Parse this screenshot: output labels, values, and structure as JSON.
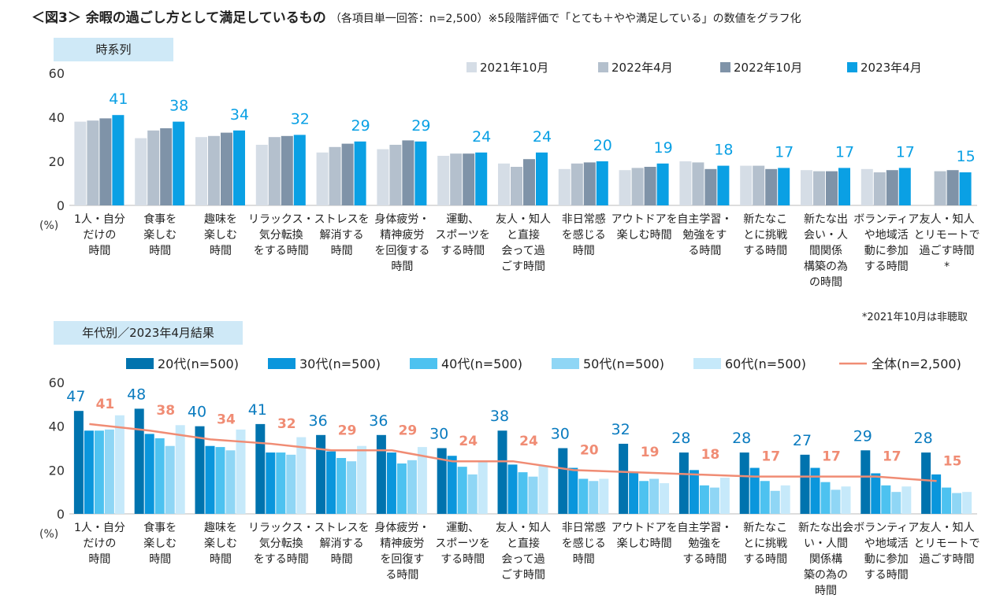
{
  "header": {
    "title": "＜図3＞ 余暇の過ごし方として満足しているもの",
    "note": "（各項目単一回答：n=2,500）※5段階評価で「とても＋やや満足している」の数値をグラフ化"
  },
  "footnote": "*2021年10月は非聴取",
  "chart_data": [
    {
      "type": "bar",
      "section_label": "時系列",
      "ylabel": "(%)",
      "ylim": [
        0,
        60
      ],
      "yticks": [
        0,
        20,
        40,
        60
      ],
      "legend_position": "top-right",
      "categories": [
        [
          "1人・自分",
          "だけの",
          "時間"
        ],
        [
          "食事を",
          "楽しむ",
          "時間"
        ],
        [
          "趣味を",
          "楽しむ",
          "時間"
        ],
        [
          "リラックス・",
          "気分転換",
          "をする時間"
        ],
        [
          "ストレスを",
          "解消する",
          "時間"
        ],
        [
          "身体疲労・",
          "精神疲労",
          "を回復する",
          "時間"
        ],
        [
          "運動、",
          "スポーツを",
          "する時間"
        ],
        [
          "友人・知人",
          "と直接",
          "会って過",
          "ごす時間"
        ],
        [
          "非日常感",
          "を感じる",
          "時間"
        ],
        [
          "アウトドアを",
          "楽しむ時間"
        ],
        [
          "自主学習・",
          "勉強をす",
          "る時間"
        ],
        [
          "新たなこ",
          "とに挑戦",
          "する時間"
        ],
        [
          "新たな出",
          "会い・人",
          "間関係",
          "構築の為",
          "の時間"
        ],
        [
          "ボランティア",
          "や地域活",
          "動に参加",
          "する時間"
        ],
        [
          "友人・知人",
          "とリモートで",
          "過ごす時間",
          "*"
        ]
      ],
      "series": [
        {
          "name": "2021年10月",
          "color": "#d5dde6",
          "values": [
            38,
            30.5,
            31,
            27.5,
            24,
            25.5,
            22.5,
            19,
            16.5,
            16,
            20,
            18,
            16,
            16.5,
            null
          ]
        },
        {
          "name": "2022年4月",
          "color": "#b4c0cd",
          "values": [
            38.5,
            34,
            31.5,
            31,
            26.5,
            27.5,
            23.5,
            17.5,
            19,
            17,
            19.5,
            18,
            15.5,
            15,
            15.5
          ]
        },
        {
          "name": "2022年10月",
          "color": "#7f93a8",
          "values": [
            39.5,
            35,
            33,
            31.5,
            28,
            29.5,
            23.5,
            21,
            19.5,
            17.5,
            16.5,
            16.5,
            15.5,
            16,
            16
          ]
        },
        {
          "name": "2023年4月",
          "color": "#0aa0e4",
          "values": [
            41,
            38,
            34,
            32,
            29,
            29,
            24,
            24,
            20,
            19,
            18,
            17,
            17,
            17,
            15
          ]
        }
      ],
      "data_labels": {
        "series": "2023年4月",
        "values": [
          41,
          38,
          34,
          32,
          29,
          29,
          24,
          24,
          20,
          19,
          18,
          17,
          17,
          17,
          15
        ],
        "color": "#0aa0e4"
      }
    },
    {
      "type": "bar",
      "section_label": "年代別／2023年4月結果",
      "ylabel": "(%)",
      "ylim": [
        0,
        60
      ],
      "yticks": [
        0,
        20,
        40,
        60
      ],
      "legend_position": "top",
      "categories": [
        [
          "1人・自分",
          "だけの",
          "時間"
        ],
        [
          "食事を",
          "楽しむ",
          "時間"
        ],
        [
          "趣味を",
          "楽しむ",
          "時間"
        ],
        [
          "リラックス・",
          "気分転換",
          "をする時間"
        ],
        [
          "ストレスを",
          "解消する",
          "時間"
        ],
        [
          "身体疲労・",
          "精神疲労",
          "を回復す",
          "る時間"
        ],
        [
          "運動、",
          "スポーツを",
          "する時間"
        ],
        [
          "友人・知人",
          "と直接",
          "会って過",
          "ごす時間"
        ],
        [
          "非日常感",
          "を感じる",
          "時間"
        ],
        [
          "アウトドアを",
          "楽しむ時間"
        ],
        [
          "自主学習・",
          "勉強を",
          "する時間"
        ],
        [
          "新たなこ",
          "とに挑戦",
          "する時間"
        ],
        [
          "新たな出会",
          "い・人間",
          "関係構",
          "築の為の",
          "時間"
        ],
        [
          "ボランティア",
          "や地域活",
          "動に参加",
          "する時間"
        ],
        [
          "友人・知人",
          "とリモートで",
          "過ごす時間"
        ]
      ],
      "series": [
        {
          "name": "20代(n=500)",
          "color": "#0073ae",
          "values": [
            47,
            48,
            40,
            41,
            36,
            36,
            30,
            38,
            30,
            32,
            28,
            28,
            27,
            29,
            28
          ]
        },
        {
          "name": "30代(n=500)",
          "color": "#0a96dc",
          "values": [
            38,
            36.5,
            31,
            28,
            28.5,
            28,
            26.5,
            22.5,
            21,
            19,
            20,
            21,
            21,
            18.5,
            18
          ]
        },
        {
          "name": "40代(n=500)",
          "color": "#4dc2f0",
          "values": [
            38,
            34.5,
            30.5,
            28,
            25.5,
            23,
            21.5,
            19,
            16,
            15,
            13,
            15,
            14.5,
            13,
            12
          ]
        },
        {
          "name": "50代(n=500)",
          "color": "#8fd6f5",
          "values": [
            38.5,
            31,
            29,
            27,
            24,
            24.5,
            18,
            17,
            15,
            16,
            12,
            10.5,
            11,
            10,
            9.5
          ]
        },
        {
          "name": "60代(n=500)",
          "color": "#c6e9fa",
          "values": [
            45,
            40.5,
            38.5,
            35,
            31,
            30.5,
            24,
            22,
            16,
            14,
            16.5,
            13,
            12.5,
            12.5,
            10
          ]
        }
      ],
      "data_labels": {
        "series": "20代(n=500)",
        "values": [
          47,
          48,
          40,
          41,
          36,
          36,
          30,
          38,
          30,
          32,
          28,
          28,
          27,
          29,
          28
        ],
        "color": "#0a7bbf"
      },
      "line_series": {
        "name": "全体(n=2,500)",
        "type": "line",
        "color": "#f08c74",
        "values": [
          41,
          38,
          34,
          32,
          29,
          29,
          24,
          24,
          20,
          19,
          18,
          17,
          17,
          17,
          15
        ]
      }
    }
  ]
}
